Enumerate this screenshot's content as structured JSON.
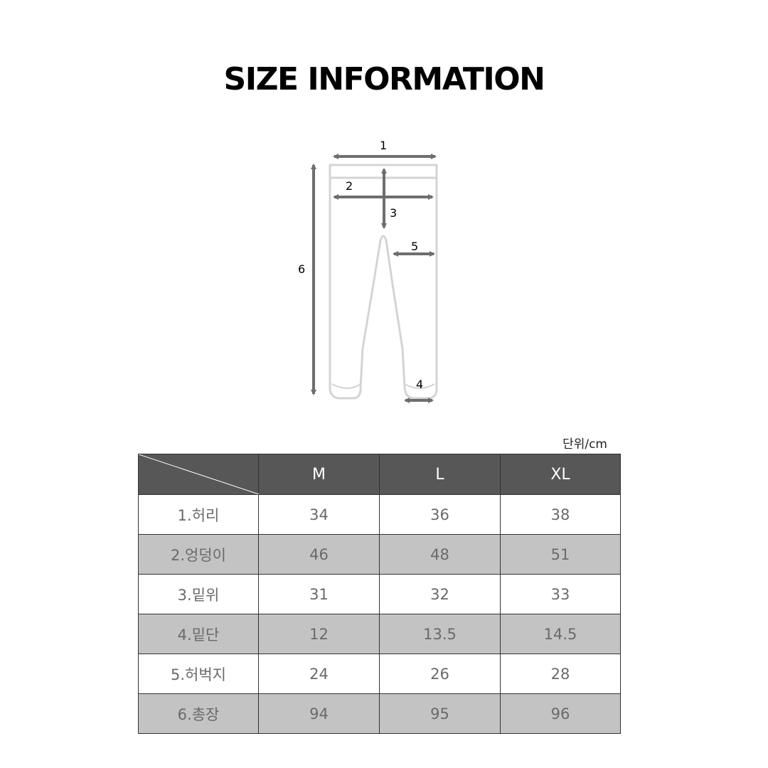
{
  "title": "SIZE INFORMATION",
  "diagram": {
    "labels": [
      "1",
      "2",
      "3",
      "4",
      "5",
      "6"
    ]
  },
  "unit": "단위/cm",
  "table": {
    "columns": [
      "M",
      "L",
      "XL"
    ],
    "rows": [
      {
        "label": "1.허리",
        "values": [
          "34",
          "36",
          "38"
        ]
      },
      {
        "label": "2.엉덩이",
        "values": [
          "46",
          "48",
          "51"
        ]
      },
      {
        "label": "3.밑위",
        "values": [
          "31",
          "32",
          "33"
        ]
      },
      {
        "label": "4.밑단",
        "values": [
          "12",
          "13.5",
          "14.5"
        ]
      },
      {
        "label": "5.허벅지",
        "values": [
          "24",
          "26",
          "28"
        ]
      },
      {
        "label": "6.총장",
        "values": [
          "94",
          "95",
          "96"
        ]
      }
    ]
  },
  "colors": {
    "header_bg": "#575757",
    "shaded_row_bg": "#c3c3c3",
    "arrow": "#6e6e6e",
    "pants_outline": "#d4d4d4"
  }
}
